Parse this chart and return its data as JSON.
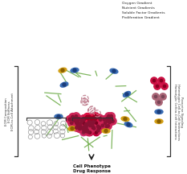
{
  "title": "",
  "bg_color": "#ffffff",
  "top_labels": [
    "Oxygen Gradient",
    "Nutrient Gradients",
    "Soluble Factor Gradients",
    "Proliferation Gradient"
  ],
  "left_labels": [
    "ECM Composition",
    "ECM Stiffness",
    "ECM-to-Cell Attachment"
  ],
  "right_labels": [
    "Homotypic Cell-to-Cell Interactions",
    "Heterotypic Cell-to-Cell Interactions",
    "Paracrine Signaling"
  ],
  "bottom_labels": [
    "Cell Phenotype",
    "Drug Response"
  ],
  "tumor_color": "#c0003c",
  "tumor_dark_color": "#7a0020",
  "ecm_fiber_color": "#6aaa44",
  "blue_cell_color": "#3a6db5",
  "yellow_cell_color": "#d4a017"
}
